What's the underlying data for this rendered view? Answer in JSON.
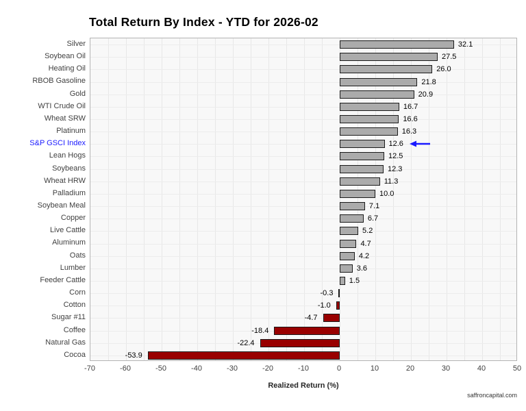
{
  "page": {
    "watermark": "saffroncapital.com"
  },
  "chart_data": {
    "type": "bar",
    "orientation": "horizontal",
    "title": "Total Return By Index - YTD for 2026-02",
    "xlabel": "Realized Return (%)",
    "ylabel": "",
    "xlim": [
      -70,
      50
    ],
    "x_ticks": [
      -70,
      -60,
      -50,
      -40,
      -30,
      -20,
      -10,
      0,
      10,
      20,
      30,
      40,
      50
    ],
    "grid": true,
    "grid_step": 5,
    "legend_position": "none",
    "categories": [
      "Silver",
      "Soybean Oil",
      "Heating Oil",
      "RBOB Gasoline",
      "Gold",
      "WTI Crude Oil",
      "Wheat SRW",
      "Platinum",
      "S&P GSCI Index",
      "Lean Hogs",
      "Soybeans",
      "Wheat HRW",
      "Palladium",
      "Soybean Meal",
      "Copper",
      "Live Cattle",
      "Aluminum",
      "Oats",
      "Lumber",
      "Feeder Cattle",
      "Corn",
      "Cotton",
      "Sugar #11",
      "Coffee",
      "Natural Gas",
      "Cocoa"
    ],
    "values": [
      32.1,
      27.5,
      26.0,
      21.8,
      20.9,
      16.7,
      16.6,
      16.3,
      12.6,
      12.5,
      12.3,
      11.3,
      10.0,
      7.1,
      6.7,
      5.2,
      4.7,
      4.2,
      3.6,
      1.5,
      -0.3,
      -1.0,
      -4.7,
      -18.4,
      -22.4,
      -53.9
    ],
    "highlight": {
      "category": "S&P GSCI Index",
      "label_color": "#1a1aff",
      "arrow_color": "#1a1aff",
      "arrow_direction": "left"
    },
    "colors": {
      "positive_bar": "#ababab",
      "negative_bar": "#990000",
      "bar_border": "#1a1a1a",
      "panel_background": "#f8f8f8",
      "gridline": "#e7e7e7"
    }
  }
}
